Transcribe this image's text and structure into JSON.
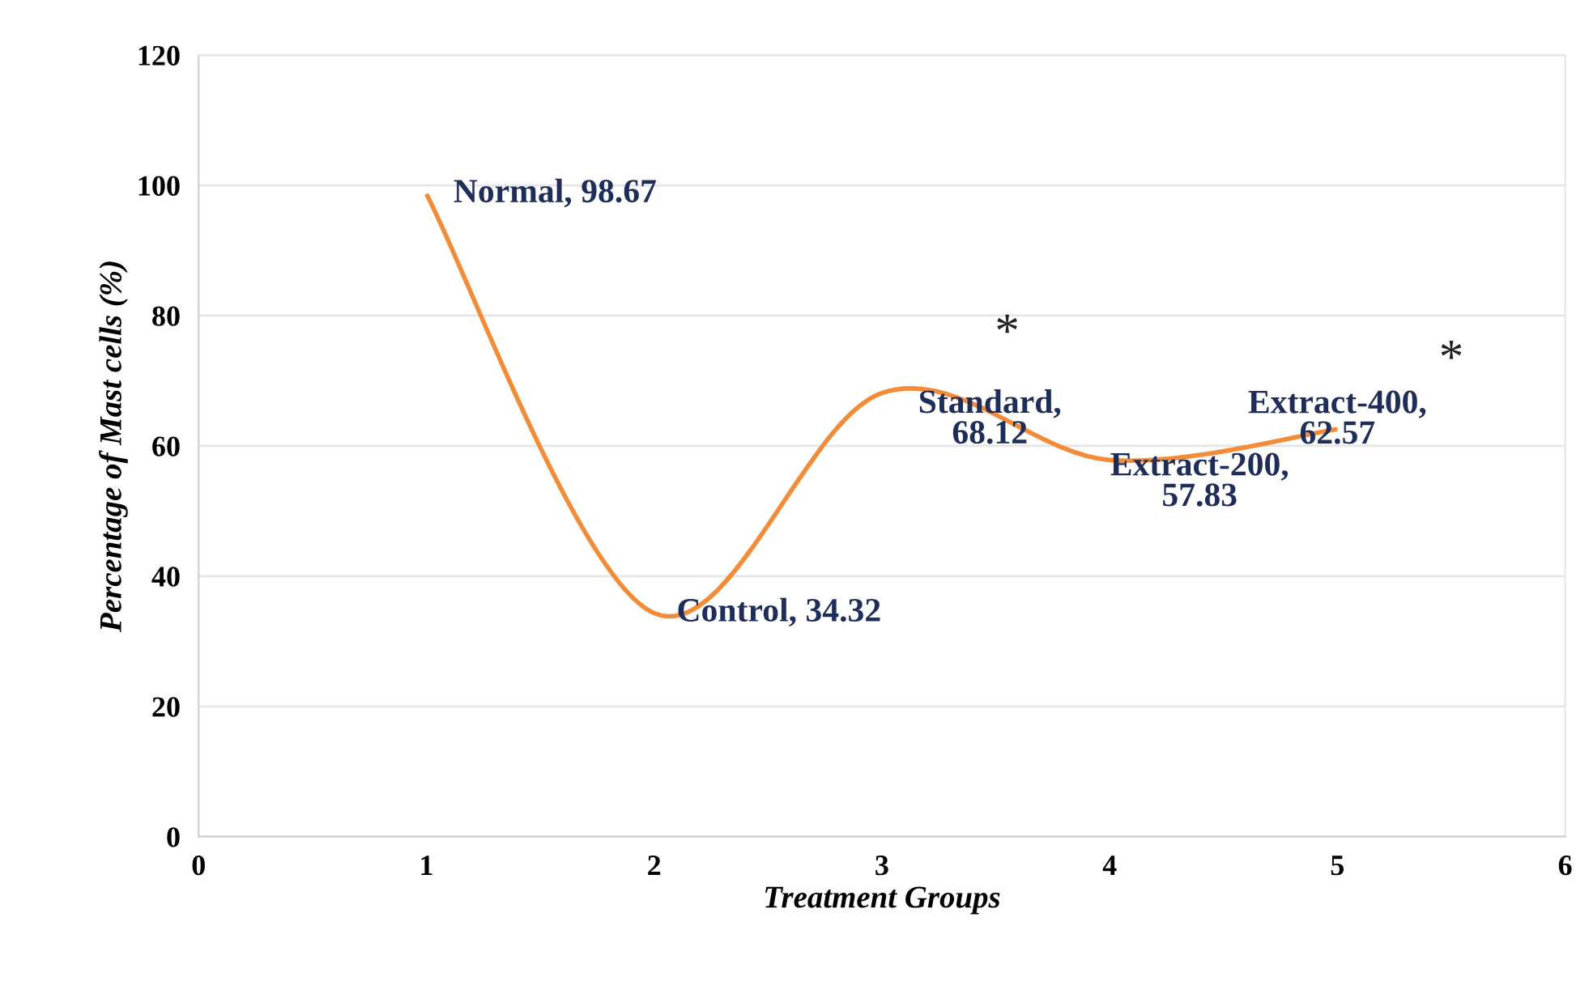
{
  "chart_data": {
    "type": "line",
    "xlabel": "Treatment Groups",
    "ylabel": "Percentage of Mast cells (%)",
    "x": [
      1,
      2,
      3,
      4,
      5
    ],
    "series": [
      {
        "color": "#f28c38",
        "values": [
          98.67,
          34.32,
          68.12,
          57.83,
          62.57
        ]
      }
    ],
    "xlim": [
      0,
      6
    ],
    "xticks": [
      0,
      1,
      2,
      3,
      4,
      5,
      6
    ],
    "ylim": [
      0,
      120
    ],
    "yticks": [
      0,
      20,
      40,
      60,
      80,
      100,
      120
    ],
    "grid": "y",
    "legend": false,
    "marker": "none",
    "line_style": "solid",
    "annotations": [
      {
        "text": "Normal, 98.67",
        "x": 1,
        "y": 98.67
      },
      {
        "text": "Control, 34.32",
        "x": 2,
        "y": 34.32
      },
      {
        "text": "Standard,\n68.12",
        "x": 3,
        "y": 68.12
      },
      {
        "text": "Extract-200,\n57.83",
        "x": 4,
        "y": 57.83
      },
      {
        "text": "Extract-400,\n62.57",
        "x": 5,
        "y": 62.57
      },
      "*",
      "*"
    ]
  }
}
